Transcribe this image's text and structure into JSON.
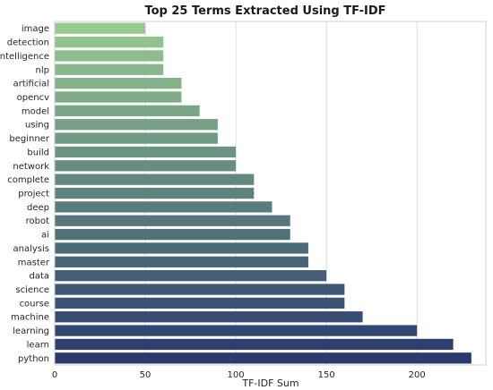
{
  "chart_data": {
    "type": "bar",
    "orientation": "horizontal",
    "title": "Top 25 Terms Extracted Using TF-IDF",
    "xlabel": "TF-IDF Sum",
    "ylabel": "",
    "xlim": [
      0,
      238
    ],
    "xticks": [
      0,
      50,
      100,
      150,
      200
    ],
    "grid": "vertical",
    "colormap": "crest",
    "color_start": "#96c98f",
    "color_end": "#283a6e",
    "categories": [
      "image",
      "detection",
      "intelligence",
      "nlp",
      "artificial",
      "opencv",
      "model",
      "using",
      "beginner",
      "build",
      "network",
      "complete",
      "project",
      "deep",
      "robot",
      "ai",
      "analysis",
      "master",
      "data",
      "science",
      "course",
      "machine",
      "learning",
      "learn",
      "python"
    ],
    "values": [
      50,
      60,
      60,
      60,
      70,
      70,
      80,
      90,
      90,
      100,
      100,
      110,
      110,
      120,
      130,
      130,
      140,
      140,
      150,
      160,
      160,
      170,
      200,
      220,
      230
    ]
  }
}
